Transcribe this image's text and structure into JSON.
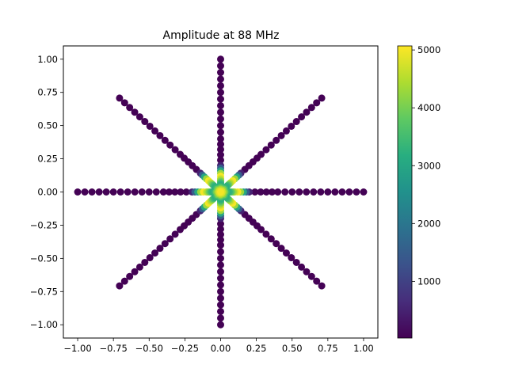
{
  "chart_data": {
    "type": "scatter",
    "title": "Amplitude at 88 MHz",
    "xlabel": "",
    "ylabel": "",
    "xlim": [
      -1.1,
      1.1
    ],
    "ylim": [
      -1.1,
      1.1
    ],
    "xticks": [
      -1.0,
      -0.75,
      -0.5,
      -0.25,
      0.0,
      0.25,
      0.5,
      0.75,
      1.0
    ],
    "xtick_labels": [
      "−1.00",
      "−0.75",
      "−0.50",
      "−0.25",
      "0.00",
      "0.25",
      "0.50",
      "0.75",
      "1.00"
    ],
    "yticks": [
      -1.0,
      -0.75,
      -0.5,
      -0.25,
      0.0,
      0.25,
      0.5,
      0.75,
      1.0
    ],
    "ytick_labels": [
      "−1.00",
      "−0.75",
      "−0.50",
      "−0.25",
      "0.00",
      "0.25",
      "0.50",
      "0.75",
      "1.00"
    ],
    "grid": false,
    "colormap": "viridis",
    "colorbar": {
      "range": [
        20,
        5070
      ],
      "ticks": [
        1000,
        2000,
        3000,
        4000,
        5000
      ],
      "tick_labels": [
        "1000",
        "2000",
        "3000",
        "4000",
        "5000"
      ]
    },
    "arms": [
      {
        "direction": "east",
        "ux": 1,
        "uy": 0
      },
      {
        "direction": "north",
        "ux": 0,
        "uy": 1
      },
      {
        "direction": "west",
        "ux": -1,
        "uy": 0
      },
      {
        "direction": "south",
        "ux": 0,
        "uy": -1
      },
      {
        "direction": "north-east",
        "ux": 0.7071,
        "uy": 0.7071
      },
      {
        "direction": "north-west",
        "ux": -0.7071,
        "uy": 0.7071
      },
      {
        "direction": "south-west",
        "ux": -0.7071,
        "uy": -0.7071
      },
      {
        "direction": "south-east",
        "ux": 0.7071,
        "uy": -0.7071
      }
    ],
    "radii": [
      0.0,
      0.01,
      0.02,
      0.03,
      0.04,
      0.05,
      0.06,
      0.07,
      0.08,
      0.09,
      0.1,
      0.12,
      0.14,
      0.16,
      0.18,
      0.2,
      0.24,
      0.28,
      0.32,
      0.36,
      0.4,
      0.45,
      0.5,
      0.55,
      0.6,
      0.65,
      0.7,
      0.75,
      0.8,
      0.85,
      0.9,
      0.95,
      1.0
    ],
    "amplitudes": [
      5000,
      4800,
      4400,
      3900,
      3400,
      3200,
      3300,
      3600,
      4000,
      4400,
      4700,
      5000,
      4300,
      3000,
      1500,
      500,
      60,
      50,
      40,
      30,
      30,
      30,
      30,
      30,
      30,
      30,
      30,
      30,
      30,
      30,
      30,
      30,
      30
    ]
  }
}
